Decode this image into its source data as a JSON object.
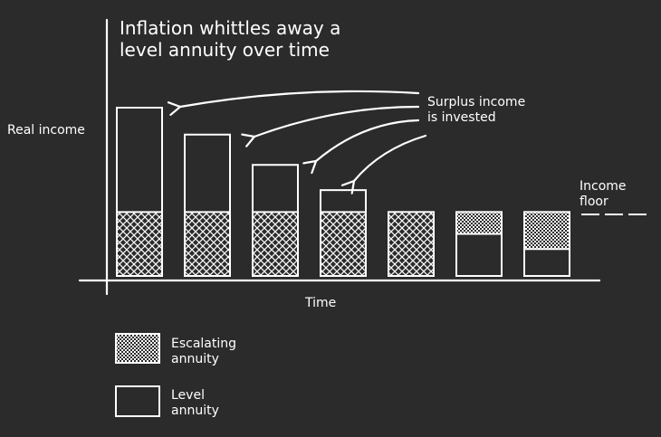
{
  "chart_data": {
    "type": "bar",
    "title_lines": [
      "Inflation whittles away a",
      "level annuity over time"
    ],
    "xlabel": "Time",
    "ylabel": "Real income",
    "annotation_lines": [
      "Surplus income",
      "is invested"
    ],
    "floor_label_lines": [
      "Income",
      "floor"
    ],
    "legend": [
      {
        "name_lines": [
          "Escalating",
          "annuity"
        ],
        "pattern": "dots"
      },
      {
        "name_lines": [
          "Level",
          "annuity"
        ],
        "pattern": "none"
      }
    ],
    "floor": 0.38,
    "level_values": [
      1.0,
      0.84,
      0.66,
      0.51,
      0.38,
      0.25,
      0.16
    ],
    "escalating_values": [
      0.38,
      0.38,
      0.38,
      0.38,
      0.38,
      0.13,
      0.22
    ],
    "ylim": [
      0,
      1.0
    ],
    "grid": false,
    "legend_position": "bottom-left",
    "colors": {
      "background": "#2b2b2b",
      "ink": "#ffffff"
    }
  }
}
